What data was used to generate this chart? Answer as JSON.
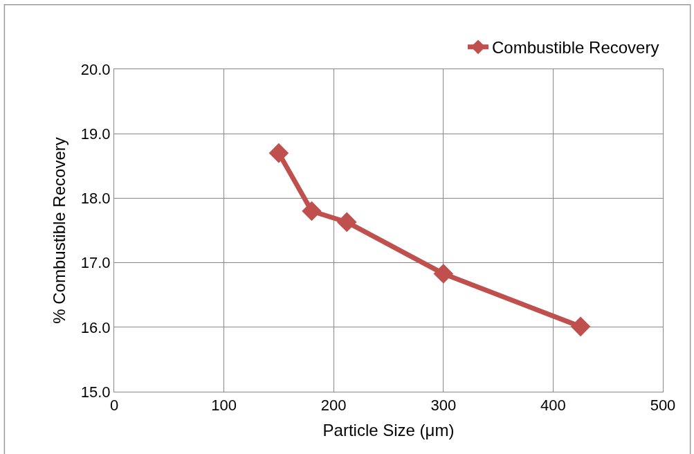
{
  "chart_data": {
    "type": "line",
    "xlabel": "Particle Size (μm)",
    "ylabel": "% Combustible Recovery",
    "x": [
      150,
      180,
      212,
      300,
      425
    ],
    "series": [
      {
        "name": "Combustible Recovery",
        "color": "#c0504d",
        "values": [
          18.7,
          17.8,
          17.63,
          16.83,
          16.01
        ]
      }
    ],
    "xlim": [
      0,
      500
    ],
    "xticks": [
      0,
      100,
      200,
      300,
      400,
      500
    ],
    "ylim": [
      15,
      20
    ],
    "yticks": [
      {
        "value": 15,
        "label": "15.0"
      },
      {
        "value": 16,
        "label": "16.0"
      },
      {
        "value": 17,
        "label": "17.0"
      },
      {
        "value": 18,
        "label": "18.0"
      },
      {
        "value": 19,
        "label": "19.0"
      },
      {
        "value": 20,
        "label": "20.0"
      }
    ],
    "grid": true,
    "legend": "top right",
    "marker": "diamond",
    "line_style": "solid"
  }
}
